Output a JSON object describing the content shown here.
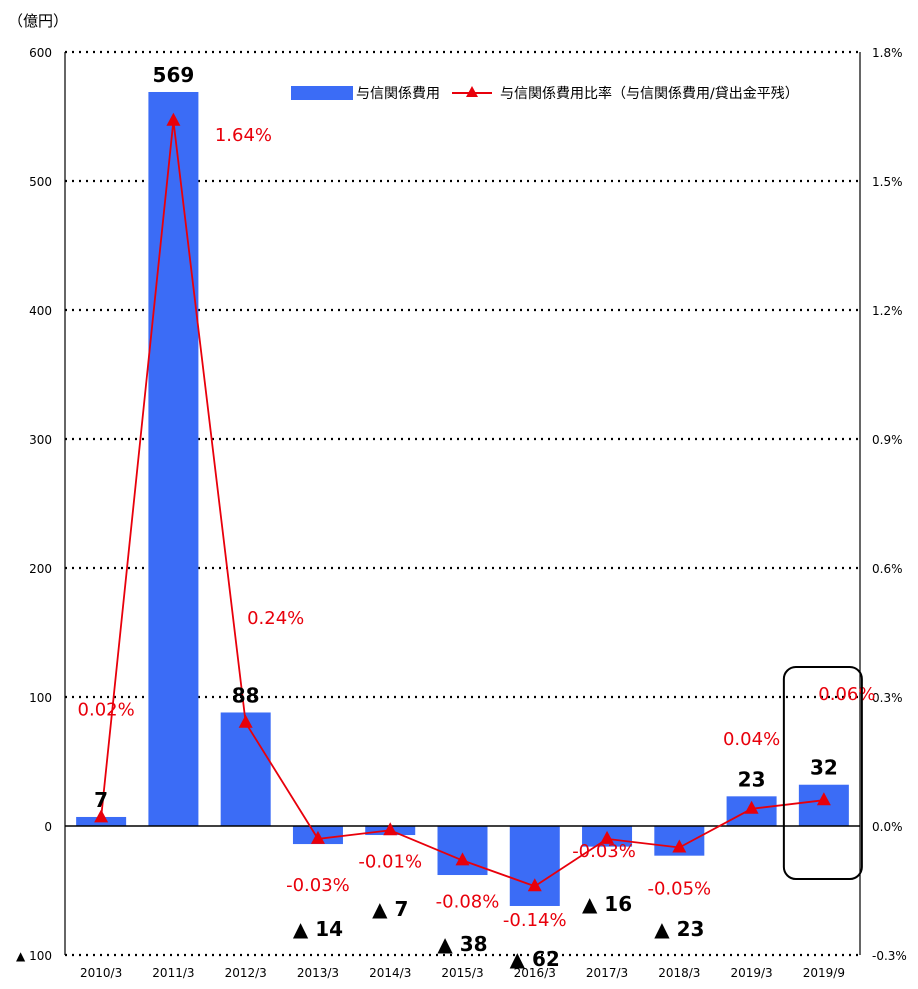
{
  "chart_data": {
    "type": "bar",
    "title": "",
    "y_unit_label": "（億円）",
    "categories": [
      "2010/3",
      "2011/3",
      "2012/3",
      "2013/3",
      "2014/3",
      "2015/3",
      "2016/3",
      "2017/3",
      "2018/3",
      "2019/3",
      "2019/9"
    ],
    "series": [
      {
        "name": "与信関係費用",
        "type": "bar",
        "axis": "left",
        "color": "#3b6cf6",
        "values": [
          7,
          569,
          88,
          -14,
          -7,
          -38,
          -62,
          -16,
          -23,
          23,
          32
        ],
        "labels": [
          "7",
          "569",
          "88",
          "▲ 14",
          "▲ 7",
          "▲ 38",
          "▲ 62",
          "▲ 16",
          "▲ 23",
          "23",
          "32"
        ]
      },
      {
        "name": "与信関係費用比率（与信関係費用/貸出金平残）",
        "type": "line",
        "axis": "right",
        "color": "#e8000b",
        "marker": "triangle",
        "values": [
          0.02,
          1.64,
          0.24,
          -0.03,
          -0.01,
          -0.08,
          -0.14,
          -0.03,
          -0.05,
          0.04,
          0.06
        ],
        "labels": [
          "0.02%",
          "1.64%",
          "0.24%",
          "-0.03%",
          "-0.01%",
          "-0.08%",
          "-0.14%",
          "-0.03%",
          "-0.05%",
          "0.04%",
          "0.06%"
        ]
      }
    ],
    "y_left": {
      "range": [
        -100,
        600
      ],
      "ticks": [
        600,
        500,
        400,
        300,
        200,
        100,
        0,
        -100
      ],
      "tick_labels": [
        "600",
        "500",
        "400",
        "300",
        "200",
        "100",
        "0",
        "▲ 100"
      ]
    },
    "y_right": {
      "range": [
        -0.3,
        1.8
      ],
      "ticks": [
        1.8,
        1.5,
        1.2,
        0.9,
        0.6,
        0.3,
        0.0,
        -0.3
      ],
      "tick_labels": [
        "1.8%",
        "1.5%",
        "1.2%",
        "0.9%",
        "0.6%",
        "0.3%",
        "0.0%",
        "-0.3%"
      ]
    },
    "grid": "dotted horizontal",
    "legend_position": "top-right",
    "highlight_category": "2019/9"
  }
}
